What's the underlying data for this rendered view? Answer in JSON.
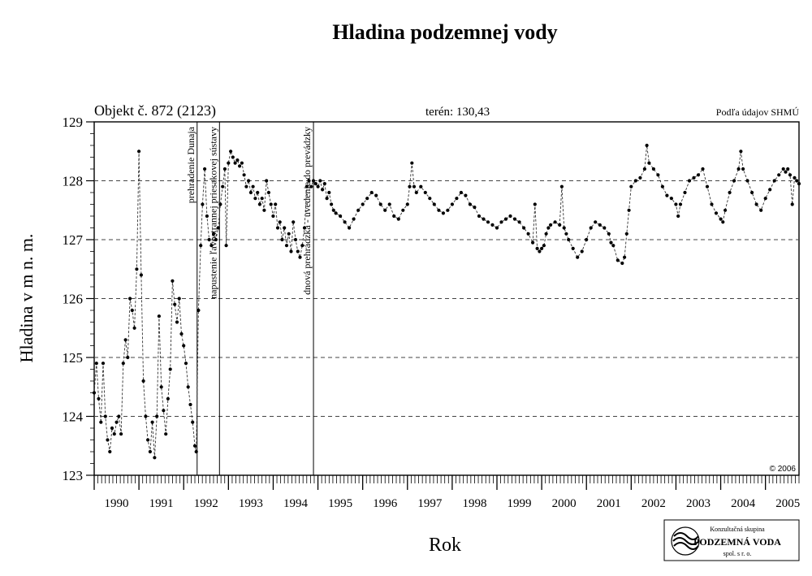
{
  "chart_data": {
    "type": "scatter",
    "title": "Hladina podzemnej vody",
    "object_label": "Objekt č. 872 (2123)",
    "terrain_label": "terén: 130,43",
    "source_label": "Podľa údajov SHMÚ",
    "copyright": "© 2006",
    "xlabel": "Rok",
    "ylabel": "Hladina v m n. m.",
    "xlim": [
      1990.0,
      2005.75
    ],
    "ylim": [
      123,
      129
    ],
    "yticks": [
      123,
      124,
      125,
      126,
      127,
      128,
      129
    ],
    "ygrid": [
      124,
      125,
      126,
      127,
      128
    ],
    "grid": "horizontal-dashed",
    "year_labels": [
      "1990",
      "1991",
      "1992",
      "1993",
      "1994",
      "1995",
      "1996",
      "1997",
      "1998",
      "1999",
      "2000",
      "2001",
      "2002",
      "2003",
      "2004",
      "2005"
    ],
    "events": [
      {
        "x": 1992.3,
        "label": "prehradenie Dunaja"
      },
      {
        "x": 1992.8,
        "label": "napustenie ľavostrannej priesakovej sústavy"
      },
      {
        "x": 1994.9,
        "label": "dnová prehrádzka - uvedenie do prevádzky"
      }
    ],
    "series": [
      {
        "marker": "dot",
        "line": "dashed",
        "points": [
          [
            1990.0,
            124.4
          ],
          [
            1990.05,
            124.9
          ],
          [
            1990.1,
            124.3
          ],
          [
            1990.15,
            123.9
          ],
          [
            1990.2,
            124.9
          ],
          [
            1990.25,
            124.0
          ],
          [
            1990.3,
            123.6
          ],
          [
            1990.35,
            123.4
          ],
          [
            1990.4,
            123.8
          ],
          [
            1990.45,
            123.7
          ],
          [
            1990.5,
            123.9
          ],
          [
            1990.55,
            124.0
          ],
          [
            1990.6,
            123.7
          ],
          [
            1990.65,
            124.9
          ],
          [
            1990.7,
            125.3
          ],
          [
            1990.75,
            125.0
          ],
          [
            1990.8,
            126.0
          ],
          [
            1990.85,
            125.8
          ],
          [
            1990.9,
            125.5
          ],
          [
            1990.95,
            126.5
          ],
          [
            1991.0,
            128.5
          ],
          [
            1991.05,
            126.4
          ],
          [
            1991.1,
            124.6
          ],
          [
            1991.15,
            124.0
          ],
          [
            1991.2,
            123.6
          ],
          [
            1991.25,
            123.4
          ],
          [
            1991.3,
            123.9
          ],
          [
            1991.35,
            123.3
          ],
          [
            1991.4,
            124.0
          ],
          [
            1991.45,
            125.7
          ],
          [
            1991.5,
            124.5
          ],
          [
            1991.55,
            124.1
          ],
          [
            1991.6,
            123.7
          ],
          [
            1991.65,
            124.3
          ],
          [
            1991.7,
            124.8
          ],
          [
            1991.75,
            126.3
          ],
          [
            1991.8,
            125.9
          ],
          [
            1991.85,
            125.6
          ],
          [
            1991.9,
            126.0
          ],
          [
            1991.95,
            125.4
          ],
          [
            1992.0,
            125.2
          ],
          [
            1992.05,
            124.9
          ],
          [
            1992.1,
            124.5
          ],
          [
            1992.15,
            124.2
          ],
          [
            1992.2,
            123.9
          ],
          [
            1992.25,
            123.5
          ],
          [
            1992.28,
            123.4
          ],
          [
            1992.33,
            125.8
          ],
          [
            1992.38,
            126.9
          ],
          [
            1992.42,
            127.6
          ],
          [
            1992.47,
            128.2
          ],
          [
            1992.52,
            127.4
          ],
          [
            1992.57,
            127.0
          ],
          [
            1992.62,
            126.9
          ],
          [
            1992.67,
            127.1
          ],
          [
            1992.72,
            127.0
          ],
          [
            1992.77,
            127.2
          ],
          [
            1992.82,
            127.6
          ],
          [
            1992.87,
            127.9
          ],
          [
            1992.92,
            128.2
          ],
          [
            1992.95,
            126.9
          ],
          [
            1993.0,
            128.3
          ],
          [
            1993.05,
            128.5
          ],
          [
            1993.1,
            128.4
          ],
          [
            1993.15,
            128.3
          ],
          [
            1993.2,
            128.35
          ],
          [
            1993.25,
            128.25
          ],
          [
            1993.3,
            128.3
          ],
          [
            1993.35,
            128.1
          ],
          [
            1993.4,
            127.9
          ],
          [
            1993.45,
            128.0
          ],
          [
            1993.5,
            127.8
          ],
          [
            1993.55,
            127.9
          ],
          [
            1993.6,
            127.7
          ],
          [
            1993.65,
            127.8
          ],
          [
            1993.7,
            127.6
          ],
          [
            1993.75,
            127.7
          ],
          [
            1993.8,
            127.5
          ],
          [
            1993.85,
            128.0
          ],
          [
            1993.9,
            127.8
          ],
          [
            1993.95,
            127.6
          ],
          [
            1994.0,
            127.4
          ],
          [
            1994.05,
            127.6
          ],
          [
            1994.1,
            127.2
          ],
          [
            1994.15,
            127.3
          ],
          [
            1994.2,
            127.0
          ],
          [
            1994.25,
            127.2
          ],
          [
            1994.3,
            126.9
          ],
          [
            1994.35,
            127.1
          ],
          [
            1994.4,
            126.8
          ],
          [
            1994.45,
            127.3
          ],
          [
            1994.5,
            127.0
          ],
          [
            1994.55,
            126.8
          ],
          [
            1994.6,
            126.7
          ],
          [
            1994.65,
            126.9
          ],
          [
            1994.7,
            127.2
          ],
          [
            1994.75,
            127.9
          ],
          [
            1994.8,
            128.0
          ],
          [
            1994.85,
            127.9
          ],
          [
            1994.9,
            128.0
          ],
          [
            1994.95,
            127.95
          ],
          [
            1995.0,
            127.9
          ],
          [
            1995.05,
            128.0
          ],
          [
            1995.1,
            127.85
          ],
          [
            1995.15,
            127.95
          ],
          [
            1995.2,
            127.7
          ],
          [
            1995.25,
            127.8
          ],
          [
            1995.3,
            127.6
          ],
          [
            1995.35,
            127.5
          ],
          [
            1995.4,
            127.45
          ],
          [
            1995.5,
            127.4
          ],
          [
            1995.6,
            127.3
          ],
          [
            1995.7,
            127.2
          ],
          [
            1995.8,
            127.35
          ],
          [
            1995.9,
            127.5
          ],
          [
            1996.0,
            127.6
          ],
          [
            1996.1,
            127.7
          ],
          [
            1996.2,
            127.8
          ],
          [
            1996.3,
            127.75
          ],
          [
            1996.4,
            127.6
          ],
          [
            1996.5,
            127.5
          ],
          [
            1996.6,
            127.6
          ],
          [
            1996.7,
            127.4
          ],
          [
            1996.8,
            127.35
          ],
          [
            1996.9,
            127.5
          ],
          [
            1997.0,
            127.6
          ],
          [
            1997.05,
            127.9
          ],
          [
            1997.1,
            128.3
          ],
          [
            1997.15,
            127.9
          ],
          [
            1997.2,
            127.8
          ],
          [
            1997.3,
            127.9
          ],
          [
            1997.4,
            127.8
          ],
          [
            1997.5,
            127.7
          ],
          [
            1997.6,
            127.6
          ],
          [
            1997.7,
            127.5
          ],
          [
            1997.8,
            127.45
          ],
          [
            1997.9,
            127.5
          ],
          [
            1998.0,
            127.6
          ],
          [
            1998.1,
            127.7
          ],
          [
            1998.2,
            127.8
          ],
          [
            1998.3,
            127.75
          ],
          [
            1998.4,
            127.6
          ],
          [
            1998.5,
            127.55
          ],
          [
            1998.6,
            127.4
          ],
          [
            1998.7,
            127.35
          ],
          [
            1998.8,
            127.3
          ],
          [
            1998.9,
            127.25
          ],
          [
            1999.0,
            127.2
          ],
          [
            1999.1,
            127.3
          ],
          [
            1999.2,
            127.35
          ],
          [
            1999.3,
            127.4
          ],
          [
            1999.4,
            127.35
          ],
          [
            1999.5,
            127.3
          ],
          [
            1999.6,
            127.2
          ],
          [
            1999.7,
            127.1
          ],
          [
            1999.8,
            126.95
          ],
          [
            1999.85,
            127.6
          ],
          [
            1999.9,
            126.85
          ],
          [
            1999.95,
            126.8
          ],
          [
            2000.0,
            126.85
          ],
          [
            2000.05,
            126.9
          ],
          [
            2000.1,
            127.1
          ],
          [
            2000.15,
            127.2
          ],
          [
            2000.2,
            127.25
          ],
          [
            2000.3,
            127.3
          ],
          [
            2000.4,
            127.25
          ],
          [
            2000.45,
            127.9
          ],
          [
            2000.5,
            127.2
          ],
          [
            2000.55,
            127.1
          ],
          [
            2000.6,
            127.0
          ],
          [
            2000.7,
            126.85
          ],
          [
            2000.8,
            126.7
          ],
          [
            2000.9,
            126.8
          ],
          [
            2001.0,
            127.0
          ],
          [
            2001.1,
            127.2
          ],
          [
            2001.2,
            127.3
          ],
          [
            2001.3,
            127.25
          ],
          [
            2001.4,
            127.2
          ],
          [
            2001.5,
            127.1
          ],
          [
            2001.55,
            126.95
          ],
          [
            2001.6,
            126.9
          ],
          [
            2001.7,
            126.65
          ],
          [
            2001.8,
            126.6
          ],
          [
            2001.85,
            126.7
          ],
          [
            2001.9,
            127.1
          ],
          [
            2001.95,
            127.5
          ],
          [
            2002.0,
            127.9
          ],
          [
            2002.1,
            128.0
          ],
          [
            2002.2,
            128.05
          ],
          [
            2002.3,
            128.2
          ],
          [
            2002.35,
            128.6
          ],
          [
            2002.4,
            128.3
          ],
          [
            2002.5,
            128.2
          ],
          [
            2002.6,
            128.1
          ],
          [
            2002.7,
            127.9
          ],
          [
            2002.8,
            127.75
          ],
          [
            2002.9,
            127.7
          ],
          [
            2003.0,
            127.6
          ],
          [
            2003.05,
            127.4
          ],
          [
            2003.1,
            127.6
          ],
          [
            2003.2,
            127.8
          ],
          [
            2003.3,
            128.0
          ],
          [
            2003.4,
            128.05
          ],
          [
            2003.5,
            128.1
          ],
          [
            2003.6,
            128.2
          ],
          [
            2003.7,
            127.9
          ],
          [
            2003.8,
            127.6
          ],
          [
            2003.9,
            127.45
          ],
          [
            2004.0,
            127.35
          ],
          [
            2004.05,
            127.3
          ],
          [
            2004.1,
            127.5
          ],
          [
            2004.2,
            127.8
          ],
          [
            2004.3,
            128.0
          ],
          [
            2004.4,
            128.2
          ],
          [
            2004.45,
            128.5
          ],
          [
            2004.5,
            128.2
          ],
          [
            2004.6,
            128.0
          ],
          [
            2004.7,
            127.8
          ],
          [
            2004.8,
            127.6
          ],
          [
            2004.9,
            127.5
          ],
          [
            2005.0,
            127.7
          ],
          [
            2005.1,
            127.85
          ],
          [
            2005.2,
            128.0
          ],
          [
            2005.3,
            128.1
          ],
          [
            2005.4,
            128.2
          ],
          [
            2005.45,
            128.15
          ],
          [
            2005.5,
            128.2
          ],
          [
            2005.55,
            128.1
          ],
          [
            2005.6,
            127.6
          ],
          [
            2005.65,
            128.05
          ],
          [
            2005.7,
            128.0
          ],
          [
            2005.75,
            127.95
          ]
        ]
      }
    ]
  },
  "footer": {
    "logo": {
      "top_text": "Konzultačná skupina",
      "main_text": "PODZEMNÁ VODA",
      "sub_text": "spol. s r. o."
    }
  }
}
